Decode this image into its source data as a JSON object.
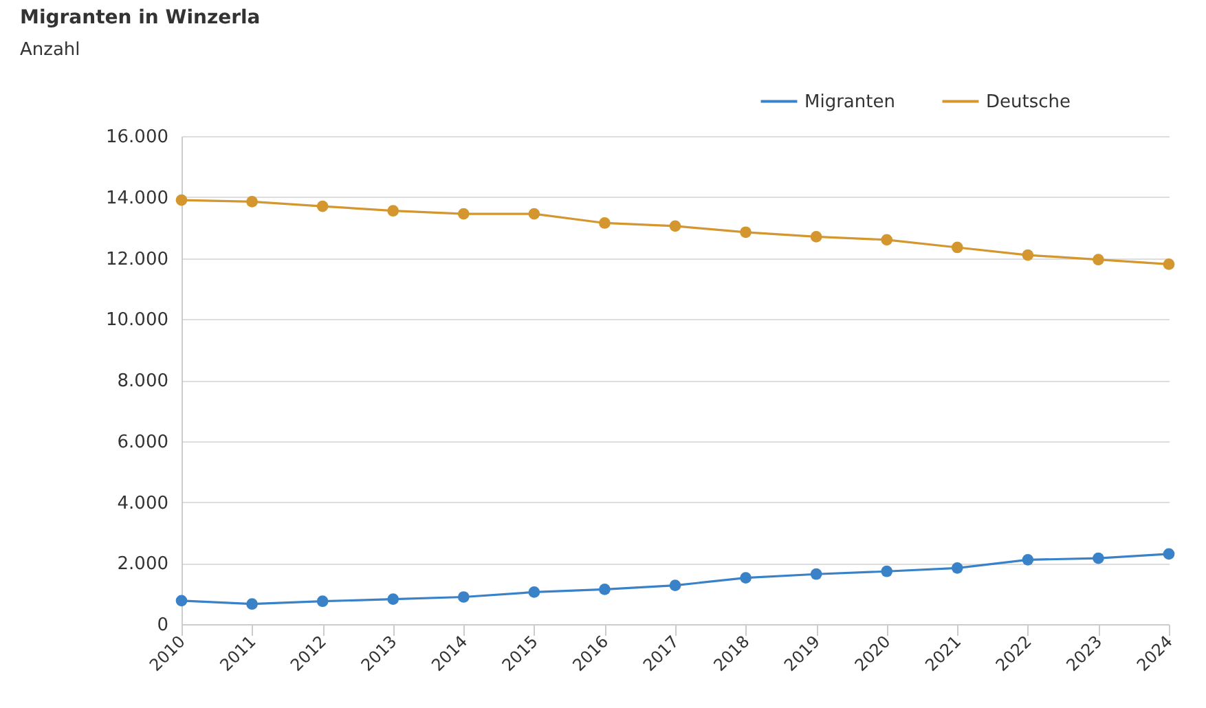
{
  "chart_data": {
    "type": "line",
    "title": "Migranten in Winzerla",
    "ylabel": "Anzahl",
    "categories": [
      "2010",
      "2011",
      "2012",
      "2013",
      "2014",
      "2015",
      "2016",
      "2017",
      "2018",
      "2019",
      "2020",
      "2021",
      "2022",
      "2023",
      "2024"
    ],
    "series": [
      {
        "name": "Migranten",
        "color": "#3a82c8",
        "values": [
          770,
          660,
          750,
          820,
          890,
          1050,
          1140,
          1270,
          1520,
          1640,
          1730,
          1840,
          2110,
          2160,
          2300
        ]
      },
      {
        "name": "Deutsche",
        "color": "#d4962e",
        "values": [
          13900,
          13850,
          13700,
          13550,
          13450,
          13450,
          13150,
          13050,
          12850,
          12700,
          12600,
          12350,
          12100,
          11950,
          11800
        ]
      }
    ],
    "ylim": [
      0,
      16000
    ],
    "yticks": [
      {
        "value": 0,
        "label": "0"
      },
      {
        "value": 2000,
        "label": "2.000"
      },
      {
        "value": 4000,
        "label": "4.000"
      },
      {
        "value": 6000,
        "label": "6.000"
      },
      {
        "value": 8000,
        "label": "8.000"
      },
      {
        "value": 10000,
        "label": "10.000"
      },
      {
        "value": 12000,
        "label": "12.000"
      },
      {
        "value": 14000,
        "label": "14.000"
      },
      {
        "value": 16000,
        "label": "16.000"
      }
    ],
    "grid": "y",
    "legend": "top right",
    "marker": "circle",
    "line_style": "solid"
  }
}
